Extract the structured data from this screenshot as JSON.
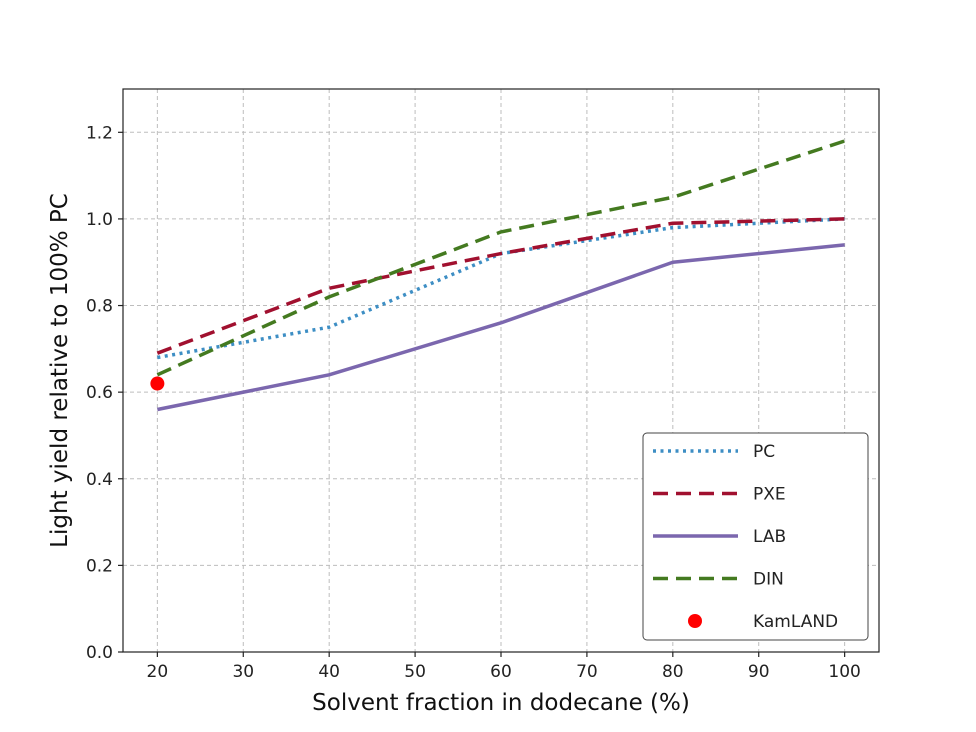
{
  "chart_data": {
    "type": "line",
    "title": "",
    "xlabel": "Solvent fraction in dodecane (%)",
    "ylabel": "Light yield relative to 100% PC",
    "xlim": [
      16,
      104
    ],
    "ylim": [
      0.0,
      1.3
    ],
    "grid": true,
    "legend_position": "lower-right",
    "xticks": [
      20,
      30,
      40,
      50,
      60,
      70,
      80,
      90,
      100
    ],
    "yticks": [
      0.0,
      0.2,
      0.4,
      0.6,
      0.8,
      1.0,
      1.2
    ],
    "xtick_labels": [
      "20",
      "30",
      "40",
      "50",
      "60",
      "70",
      "80",
      "90",
      "100"
    ],
    "ytick_labels": [
      "0.0",
      "0.2",
      "0.4",
      "0.6",
      "0.8",
      "1.0",
      "1.2"
    ],
    "series": [
      {
        "name": "PC",
        "style": "dotted",
        "color": "#3d8ec4",
        "x": [
          20,
          40,
          60,
          80,
          100
        ],
        "y": [
          0.68,
          0.75,
          0.92,
          0.98,
          1.0
        ]
      },
      {
        "name": "PXE",
        "style": "dashed",
        "color": "#a1102f",
        "x": [
          20,
          40,
          60,
          80,
          100
        ],
        "y": [
          0.69,
          0.84,
          0.92,
          0.99,
          1.0
        ]
      },
      {
        "name": "LAB",
        "style": "solid",
        "color": "#7b67ae",
        "x": [
          20,
          40,
          60,
          80,
          100
        ],
        "y": [
          0.56,
          0.64,
          0.76,
          0.9,
          0.94
        ]
      },
      {
        "name": "DIN",
        "style": "dashed",
        "color": "#447a20",
        "x": [
          20,
          40,
          60,
          80,
          100
        ],
        "y": [
          0.64,
          0.82,
          0.97,
          1.05,
          1.18
        ]
      },
      {
        "name": "KamLAND",
        "style": "marker",
        "color": "#ff0000",
        "x": [
          20
        ],
        "y": [
          0.62
        ]
      }
    ]
  }
}
